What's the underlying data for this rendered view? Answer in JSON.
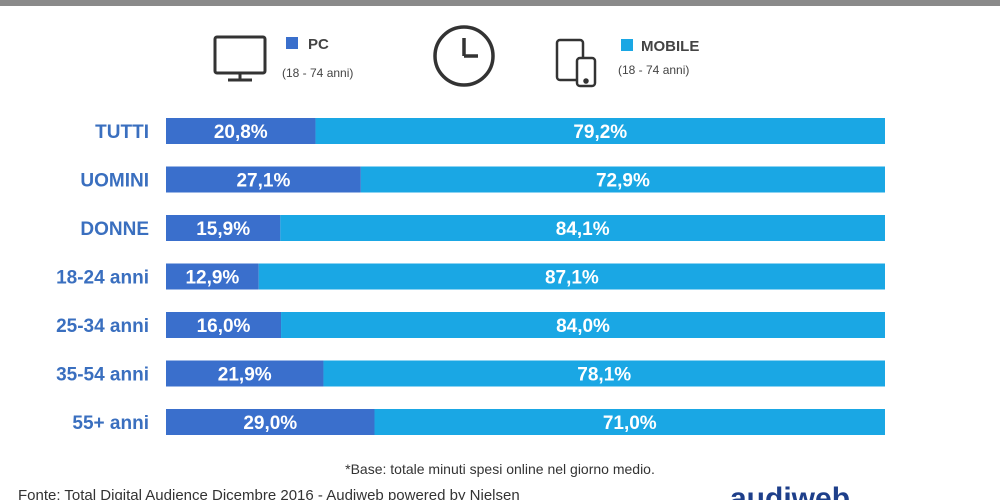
{
  "legend": {
    "pc": {
      "label": "PC",
      "sub": "(18 - 74 anni)",
      "color": "#3a6fcc",
      "icon": "monitor-icon"
    },
    "clock_icon": "clock-icon",
    "mobile": {
      "label": "MOBILE",
      "sub": "(18 - 74 anni)",
      "color": "#1aa7e4",
      "icon": "tablet-phone-icon"
    }
  },
  "chart_data": {
    "type": "bar",
    "orientation": "horizontal",
    "stacked": true,
    "categories": [
      "TUTTI",
      "UOMINI",
      "DONNE",
      "18-24 anni",
      "25-34 anni",
      "35-54 anni",
      "55+ anni"
    ],
    "series": [
      {
        "name": "PC",
        "values": [
          20.8,
          27.1,
          15.9,
          12.9,
          16.0,
          21.9,
          29.0
        ],
        "labels": [
          "20,8%",
          "27,1%",
          "15,9%",
          "12,9%",
          "16,0%",
          "21,9%",
          "29,0%"
        ]
      },
      {
        "name": "MOBILE",
        "values": [
          79.2,
          72.9,
          84.1,
          87.1,
          84.0,
          78.1,
          71.0
        ],
        "labels": [
          "79,2%",
          "72,9%",
          "84,1%",
          "87,1%",
          "84,0%",
          "78,1%",
          "71,0%"
        ]
      }
    ],
    "xlim": [
      0,
      100
    ],
    "grid": false,
    "legend_position": "top"
  },
  "footnote": "*Base: totale minuti spesi online nel giorno medio.",
  "source": "Fonte: Total Digital Audience Dicembre 2016 - Audiweb powered by Nielsen",
  "logo": {
    "text": "audiweb"
  }
}
